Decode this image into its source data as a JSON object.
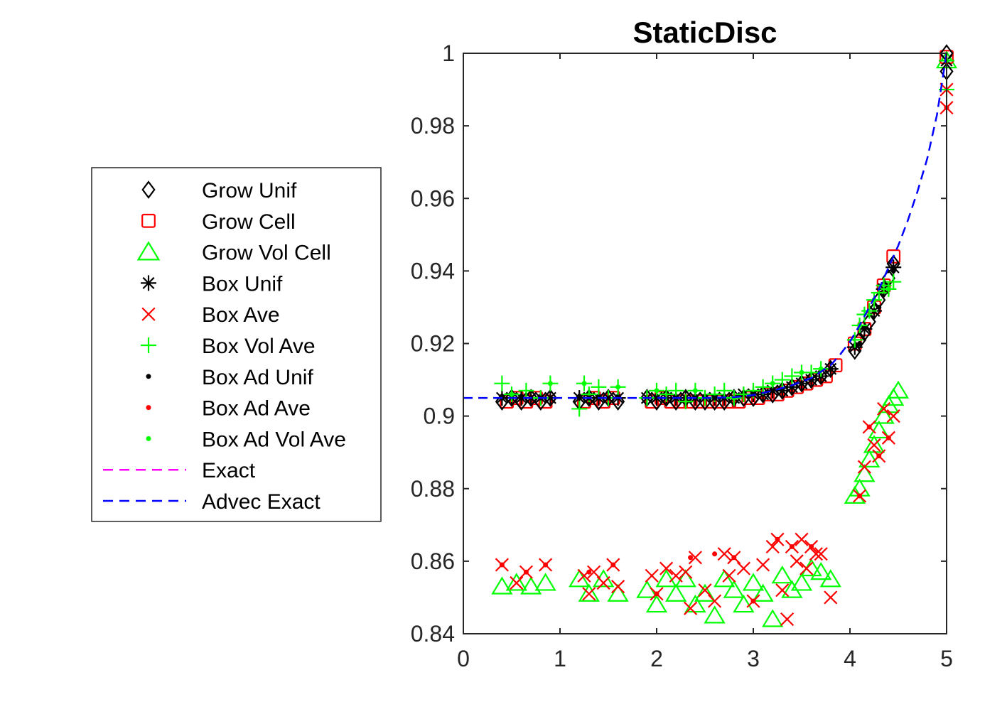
{
  "chart_data": {
    "type": "scatter",
    "title": "StaticDisc",
    "xlabel": "",
    "ylabel": "",
    "xlim": [
      0,
      5
    ],
    "ylim": [
      0.84,
      1.0
    ],
    "xticks": [
      "0",
      "1",
      "2",
      "3",
      "4",
      "5"
    ],
    "yticks": [
      "0.84",
      "0.86",
      "0.88",
      "0.9",
      "0.92",
      "0.94",
      "0.96",
      "0.98",
      "1"
    ],
    "grid": false,
    "legend_position": "outside-left",
    "series": [
      {
        "name": "Grow Unif",
        "marker": "diamond",
        "color": "#000000",
        "x": [
          0.4,
          0.5,
          0.6,
          0.7,
          0.8,
          0.9,
          1.2,
          1.3,
          1.4,
          1.5,
          1.6,
          1.9,
          2.0,
          2.1,
          2.2,
          2.3,
          2.4,
          2.5,
          2.6,
          2.7,
          2.8,
          2.9,
          3.0,
          3.1,
          3.2,
          3.3,
          3.4,
          3.5,
          3.6,
          3.7,
          3.8,
          4.05,
          4.1,
          4.15,
          4.2,
          4.25,
          4.3,
          4.35,
          4.4,
          4.45,
          5.0,
          5.0
        ],
        "y": [
          0.904,
          0.905,
          0.904,
          0.905,
          0.904,
          0.905,
          0.904,
          0.905,
          0.904,
          0.905,
          0.904,
          0.905,
          0.904,
          0.905,
          0.904,
          0.905,
          0.904,
          0.904,
          0.904,
          0.904,
          0.905,
          0.905,
          0.905,
          0.906,
          0.906,
          0.907,
          0.908,
          0.909,
          0.91,
          0.911,
          0.913,
          0.918,
          0.921,
          0.923,
          0.926,
          0.929,
          0.932,
          0.935,
          0.938,
          0.942,
          1.0,
          0.995
        ]
      },
      {
        "name": "Grow Cell",
        "marker": "square",
        "color": "#ff0000",
        "x": [
          0.45,
          0.55,
          0.65,
          0.75,
          0.85,
          1.25,
          1.35,
          1.45,
          1.55,
          1.95,
          2.05,
          2.15,
          2.25,
          2.35,
          2.45,
          2.55,
          2.65,
          2.75,
          2.85,
          2.95,
          3.05,
          3.15,
          3.25,
          3.35,
          3.45,
          3.55,
          3.65,
          3.75,
          3.85,
          4.05,
          4.15,
          4.25,
          4.35,
          4.45,
          5.0
        ],
        "y": [
          0.904,
          0.905,
          0.904,
          0.905,
          0.904,
          0.904,
          0.905,
          0.904,
          0.905,
          0.904,
          0.905,
          0.904,
          0.904,
          0.904,
          0.904,
          0.904,
          0.904,
          0.904,
          0.904,
          0.905,
          0.905,
          0.906,
          0.906,
          0.907,
          0.908,
          0.909,
          0.91,
          0.911,
          0.914,
          0.92,
          0.924,
          0.93,
          0.936,
          0.944,
          0.999
        ]
      },
      {
        "name": "Grow Vol Cell",
        "marker": "triangle",
        "color": "#00ff00",
        "x": [
          0.4,
          0.55,
          0.7,
          0.85,
          1.2,
          1.3,
          1.45,
          1.6,
          1.9,
          2.0,
          2.1,
          2.2,
          2.3,
          2.4,
          2.5,
          2.6,
          2.7,
          2.8,
          2.9,
          3.0,
          3.1,
          3.2,
          3.3,
          3.4,
          3.5,
          3.6,
          3.7,
          3.8,
          4.05,
          4.1,
          4.15,
          4.2,
          4.25,
          4.3,
          4.35,
          4.4,
          4.45,
          4.5,
          5.0
        ],
        "y": [
          0.853,
          0.854,
          0.853,
          0.854,
          0.855,
          0.851,
          0.855,
          0.851,
          0.852,
          0.848,
          0.855,
          0.851,
          0.855,
          0.848,
          0.851,
          0.845,
          0.855,
          0.852,
          0.848,
          0.854,
          0.851,
          0.844,
          0.856,
          0.852,
          0.854,
          0.858,
          0.857,
          0.855,
          0.878,
          0.88,
          0.884,
          0.888,
          0.892,
          0.896,
          0.9,
          0.903,
          0.905,
          0.907,
          0.998
        ]
      },
      {
        "name": "Box Unif",
        "marker": "asterisk",
        "color": "#000000",
        "x": [
          0.4,
          0.5,
          0.6,
          0.7,
          0.8,
          0.9,
          1.2,
          1.3,
          1.4,
          1.5,
          1.6,
          1.9,
          2.0,
          2.1,
          2.2,
          2.3,
          2.4,
          2.5,
          2.6,
          2.7,
          2.8,
          2.9,
          3.0,
          3.1,
          3.2,
          3.3,
          3.4,
          3.5,
          3.6,
          3.7,
          3.8,
          4.05,
          4.15,
          4.25,
          4.35,
          4.45,
          5.0
        ],
        "y": [
          0.905,
          0.905,
          0.905,
          0.905,
          0.905,
          0.905,
          0.905,
          0.905,
          0.905,
          0.905,
          0.905,
          0.905,
          0.905,
          0.905,
          0.905,
          0.905,
          0.905,
          0.905,
          0.905,
          0.905,
          0.905,
          0.906,
          0.906,
          0.906,
          0.907,
          0.907,
          0.908,
          0.909,
          0.91,
          0.911,
          0.913,
          0.919,
          0.924,
          0.929,
          0.935,
          0.941,
          0.998
        ]
      },
      {
        "name": "Box Ave",
        "marker": "x",
        "color": "#ff0000",
        "x": [
          0.4,
          0.55,
          0.65,
          0.85,
          1.25,
          1.3,
          1.35,
          1.45,
          1.55,
          1.6,
          1.95,
          2.0,
          2.1,
          2.2,
          2.3,
          2.35,
          2.4,
          2.5,
          2.6,
          2.7,
          2.75,
          2.8,
          2.9,
          3.0,
          3.1,
          3.2,
          3.25,
          3.3,
          3.35,
          3.4,
          3.45,
          3.5,
          3.55,
          3.6,
          3.65,
          3.7,
          3.8,
          4.1,
          4.15,
          4.2,
          4.25,
          4.3,
          4.35,
          4.4,
          4.45,
          5.0,
          5.0
        ],
        "y": [
          0.859,
          0.854,
          0.857,
          0.859,
          0.856,
          0.851,
          0.857,
          0.854,
          0.859,
          0.853,
          0.856,
          0.851,
          0.858,
          0.856,
          0.857,
          0.847,
          0.861,
          0.852,
          0.849,
          0.862,
          0.856,
          0.861,
          0.858,
          0.849,
          0.859,
          0.864,
          0.866,
          0.852,
          0.844,
          0.864,
          0.86,
          0.866,
          0.858,
          0.864,
          0.862,
          0.862,
          0.85,
          0.878,
          0.886,
          0.897,
          0.892,
          0.889,
          0.902,
          0.894,
          0.9,
          0.985,
          0.99
        ]
      },
      {
        "name": "Box Vol Ave",
        "marker": "plus",
        "color": "#00ff00",
        "x": [
          0.4,
          0.5,
          0.65,
          0.8,
          0.9,
          1.2,
          1.25,
          1.3,
          1.4,
          1.5,
          1.6,
          1.9,
          2.0,
          2.1,
          2.2,
          2.3,
          2.4,
          2.5,
          2.6,
          2.7,
          2.8,
          2.9,
          3.0,
          3.1,
          3.2,
          3.3,
          3.4,
          3.5,
          3.6,
          3.7,
          4.05,
          4.1,
          4.15,
          4.2,
          4.25,
          4.3,
          4.35,
          4.4,
          4.45,
          5.0,
          5.0
        ],
        "y": [
          0.909,
          0.906,
          0.907,
          0.905,
          0.909,
          0.902,
          0.909,
          0.906,
          0.908,
          0.905,
          0.908,
          0.905,
          0.907,
          0.906,
          0.907,
          0.904,
          0.907,
          0.905,
          0.906,
          0.907,
          0.905,
          0.906,
          0.907,
          0.908,
          0.909,
          0.91,
          0.911,
          0.912,
          0.912,
          0.913,
          0.921,
          0.925,
          0.928,
          0.929,
          0.932,
          0.934,
          0.936,
          0.935,
          0.937,
          0.998,
          0.99
        ]
      },
      {
        "name": "Box Ad Unif",
        "marker": "dot",
        "color": "#000000",
        "x": [
          0.4,
          0.6,
          0.8,
          1.3,
          1.5,
          2.0,
          2.2,
          2.4,
          2.6,
          2.8,
          3.0,
          3.2,
          3.4,
          3.6,
          3.8,
          4.1,
          4.3,
          4.45,
          5.0
        ],
        "y": [
          0.905,
          0.905,
          0.905,
          0.905,
          0.905,
          0.905,
          0.905,
          0.905,
          0.905,
          0.905,
          0.906,
          0.907,
          0.908,
          0.91,
          0.913,
          0.92,
          0.93,
          0.94,
          0.998
        ]
      },
      {
        "name": "Box Ad Ave",
        "marker": "dot",
        "color": "#ff0000",
        "x": [
          0.4,
          0.65,
          0.85,
          1.3,
          1.55,
          2.0,
          2.35,
          2.6,
          2.8,
          3.0,
          3.25,
          3.4,
          3.6,
          4.1,
          4.2,
          4.3,
          4.4,
          5.0
        ],
        "y": [
          0.859,
          0.857,
          0.859,
          0.857,
          0.859,
          0.851,
          0.861,
          0.862,
          0.861,
          0.849,
          0.866,
          0.864,
          0.864,
          0.878,
          0.897,
          0.889,
          0.894,
          0.985
        ]
      },
      {
        "name": "Box Ad Vol Ave",
        "marker": "dot",
        "color": "#00ff00",
        "x": [
          0.5,
          0.9,
          1.25,
          1.6,
          2.0,
          2.4,
          2.8,
          3.2,
          3.5,
          3.7,
          4.1,
          4.25,
          4.4,
          5.0
        ],
        "y": [
          0.906,
          0.909,
          0.909,
          0.908,
          0.907,
          0.907,
          0.905,
          0.909,
          0.912,
          0.913,
          0.925,
          0.932,
          0.935,
          0.998
        ]
      },
      {
        "name": "Exact",
        "marker": "dashed-line",
        "color": "#ff00ff",
        "x": [],
        "y": []
      },
      {
        "name": "Advec Exact",
        "marker": "dashed-line",
        "color": "#0000ff",
        "x": [
          0.0,
          0.5,
          1.0,
          1.5,
          2.0,
          2.5,
          2.8,
          3.0,
          3.2,
          3.4,
          3.6,
          3.8,
          3.9,
          4.0,
          4.1,
          4.2,
          4.3,
          4.4,
          4.5,
          4.6,
          4.7,
          4.8,
          4.9,
          5.0
        ],
        "y": [
          0.905,
          0.905,
          0.905,
          0.905,
          0.905,
          0.905,
          0.9052,
          0.9058,
          0.907,
          0.9085,
          0.9105,
          0.914,
          0.917,
          0.9205,
          0.925,
          0.93,
          0.935,
          0.941,
          0.947,
          0.954,
          0.962,
          0.971,
          0.983,
          1.0
        ]
      }
    ]
  }
}
